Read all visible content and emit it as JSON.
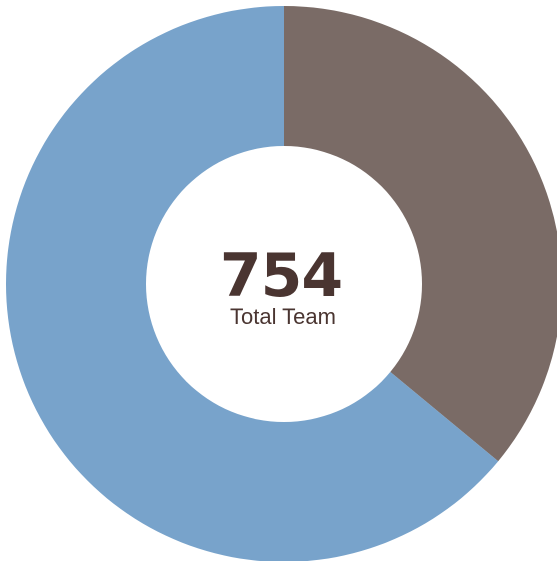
{
  "chart_data": {
    "type": "pie",
    "variant": "donut",
    "center": {
      "total": "754",
      "label": "Total Team"
    },
    "slices": [
      {
        "value": 36,
        "color": "#7a6b66"
      },
      {
        "value": 64,
        "color": "#78a3cb"
      }
    ]
  },
  "colors": {
    "text": "#4a3531",
    "background": "#ffffff"
  }
}
